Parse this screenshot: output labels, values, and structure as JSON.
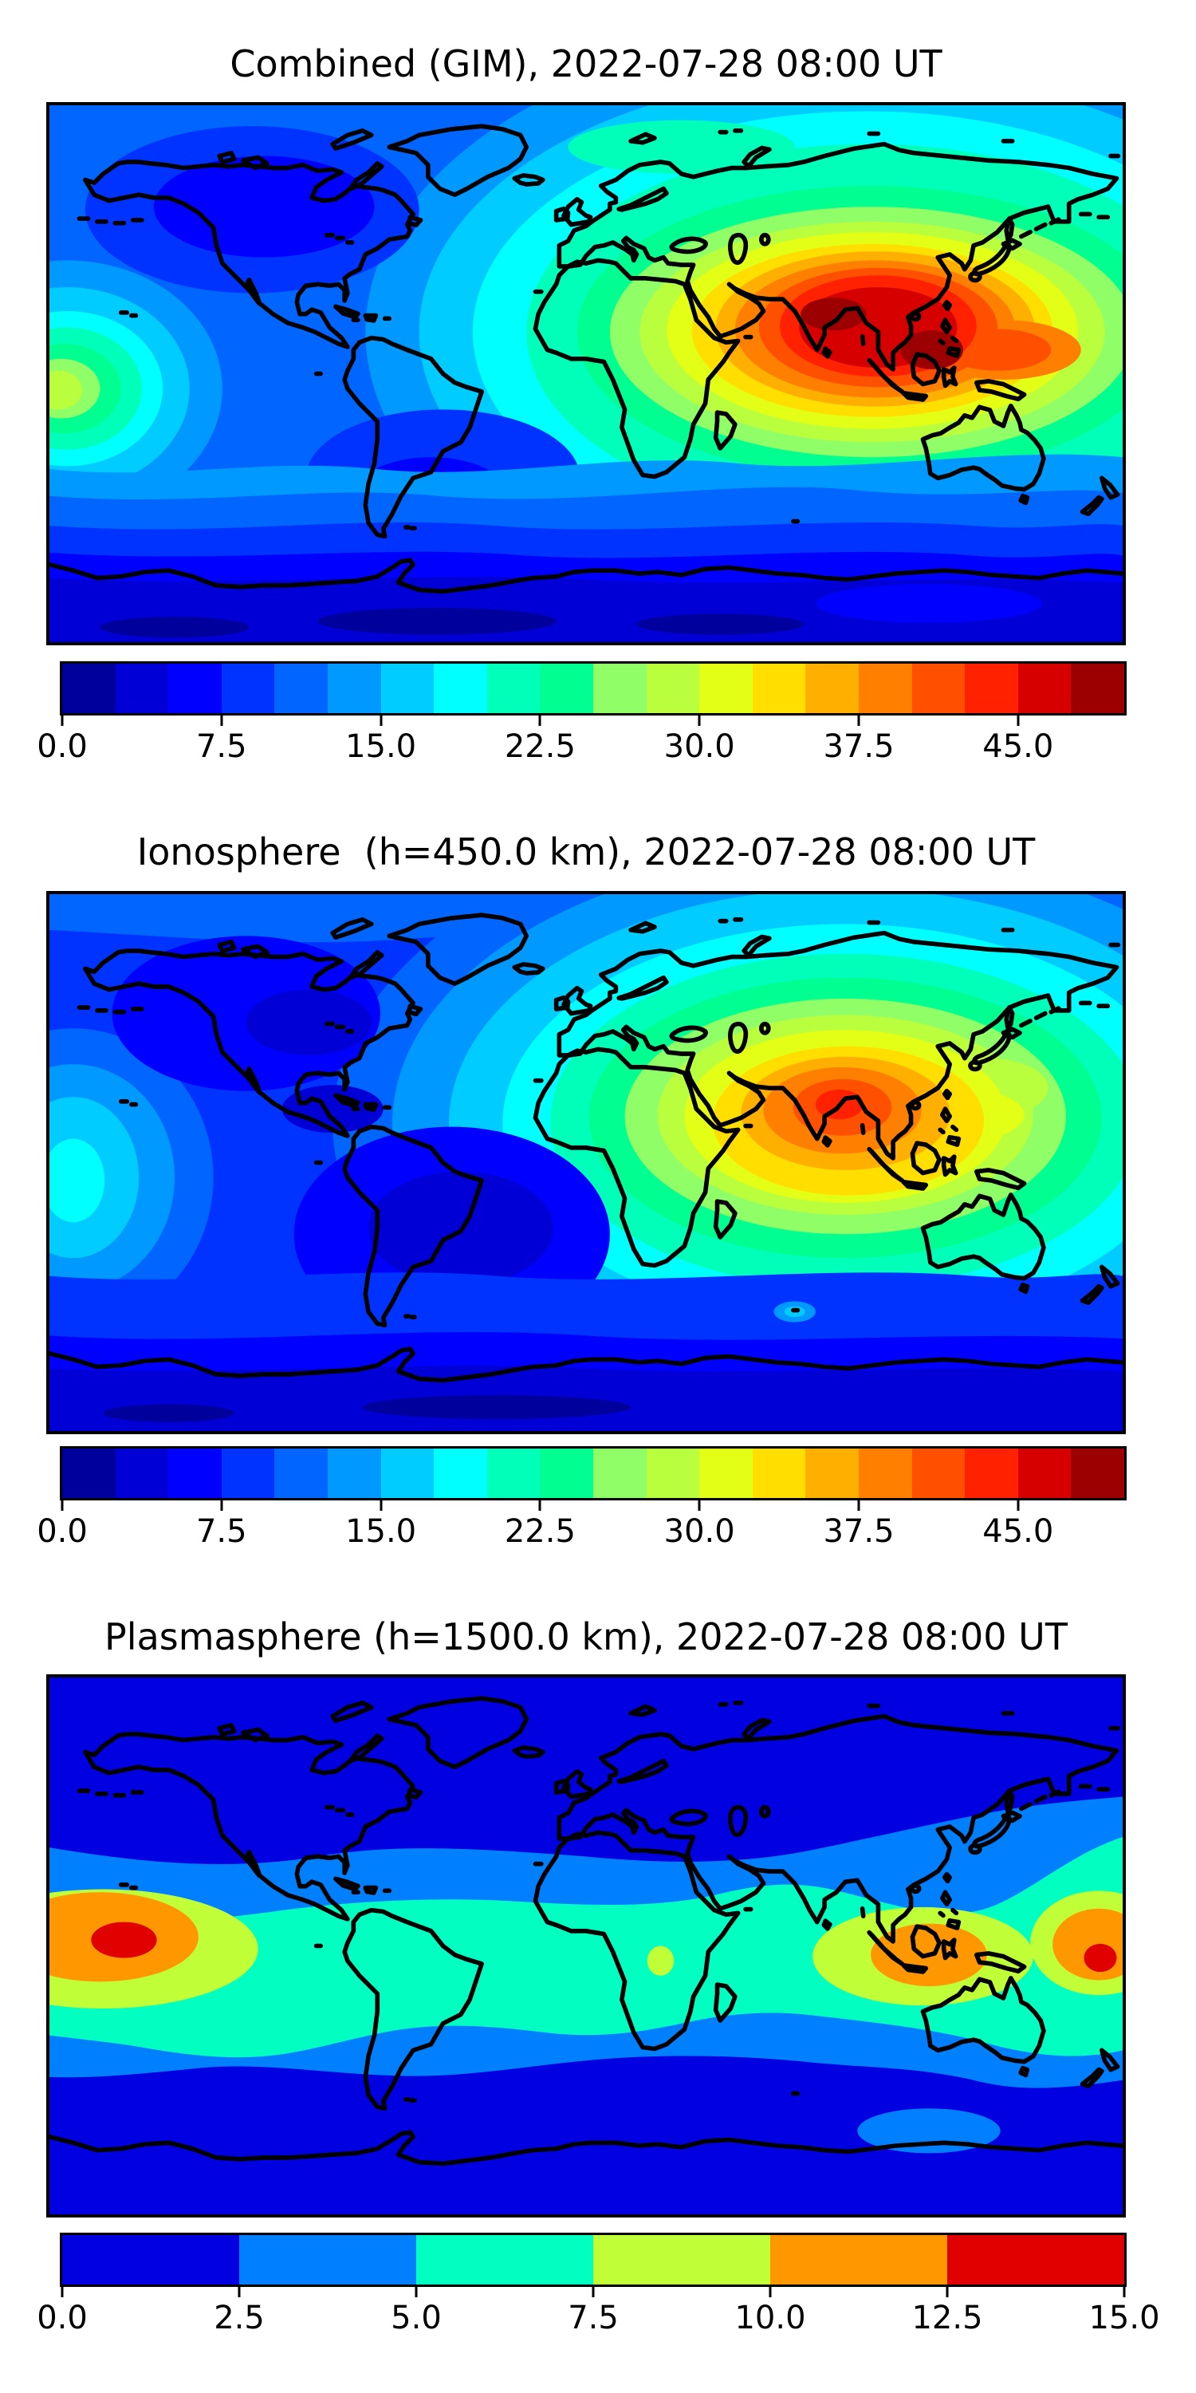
{
  "figure": {
    "background": "#ffffff",
    "text_color": "#000000",
    "frame_color": "#000000",
    "coastline_color": "#000000"
  },
  "panels": [
    {
      "id": "combined",
      "title": "Combined (GIM), 2022-07-28 08:00 UT",
      "colorbar": {
        "palette": "jet20",
        "range": [
          0.0,
          50.0
        ],
        "ticks": [
          "0.0",
          "7.5",
          "15.0",
          "22.5",
          "30.0",
          "37.5",
          "45.0"
        ]
      }
    },
    {
      "id": "ionosphere",
      "title": "Ionosphere  (h=450.0 km), 2022-07-28 08:00 UT",
      "colorbar": {
        "palette": "jet20",
        "range": [
          0.0,
          50.0
        ],
        "ticks": [
          "0.0",
          "7.5",
          "15.0",
          "22.5",
          "30.0",
          "37.5",
          "45.0"
        ]
      }
    },
    {
      "id": "plasmasphere",
      "title": "Plasmasphere (h=1500.0 km), 2022-07-28 08:00 UT",
      "colorbar": {
        "palette": "jet6",
        "range": [
          0.0,
          15.0
        ],
        "ticks": [
          "0.0",
          "2.5",
          "5.0",
          "7.5",
          "10.0",
          "12.5",
          "15.0"
        ]
      }
    }
  ],
  "palettes": {
    "jet20": [
      "#00009D",
      "#0000D6",
      "#0000FF",
      "#0033FF",
      "#0066FF",
      "#0099FF",
      "#00CCFF",
      "#00FFFF",
      "#00FFB9",
      "#00FF90",
      "#90FF67",
      "#B9FF3E",
      "#E2FF15",
      "#FFDE00",
      "#FFAF00",
      "#FF8000",
      "#FF5000",
      "#FF2100",
      "#D60000",
      "#9D0000"
    ],
    "jet6": [
      "#0000E0",
      "#0080FF",
      "#00FFC0",
      "#C0FF37",
      "#FF9700",
      "#E00000"
    ]
  },
  "chart_data": [
    {
      "type": "heatmap",
      "subtype": "filled-contour world map",
      "title": "Combined (GIM), 2022-07-28 08:00 UT",
      "projection": "equirectangular",
      "lon_range": [
        -180,
        180
      ],
      "lat_range": [
        -90,
        90
      ],
      "levels": [
        0,
        2.5,
        5,
        7.5,
        10,
        12.5,
        15,
        17.5,
        20,
        22.5,
        25,
        27.5,
        30,
        32.5,
        35,
        37.5,
        40,
        42.5,
        45,
        47.5,
        50
      ],
      "colorbar_ticks": [
        0.0,
        7.5,
        15.0,
        22.5,
        30.0,
        37.5,
        45.0
      ],
      "legend_position": "below",
      "features": [
        {
          "name": "primary maximum",
          "lon": 85,
          "lat": 20,
          "approx_value": 48
        },
        {
          "name": "secondary maximum core",
          "lon": 116,
          "lat": 8,
          "approx_value": 48
        },
        {
          "name": "dateline equatorial enhancement",
          "lon": -172,
          "lat": -5,
          "approx_value": 30
        },
        {
          "name": "North America minimum",
          "lon": -108,
          "lat": 56,
          "approx_value": 5
        },
        {
          "name": "Antarctic minimum band",
          "lon": -50,
          "lat": -80,
          "approx_value": 2
        }
      ]
    },
    {
      "type": "heatmap",
      "subtype": "filled-contour world map",
      "title": "Ionosphere  (h=450.0 km), 2022-07-28 08:00 UT",
      "projection": "equirectangular",
      "lon_range": [
        -180,
        180
      ],
      "lat_range": [
        -90,
        90
      ],
      "levels": [
        0,
        2.5,
        5,
        7.5,
        10,
        12.5,
        15,
        17.5,
        20,
        22.5,
        25,
        27.5,
        30,
        32.5,
        35,
        37.5,
        40,
        42.5,
        45,
        47.5,
        50
      ],
      "colorbar_ticks": [
        0.0,
        7.5,
        15.0,
        22.5,
        30.0,
        37.5,
        45.0
      ],
      "legend_position": "below",
      "features": [
        {
          "name": "primary maximum",
          "lon": 85,
          "lat": 20,
          "approx_value": 43
        },
        {
          "name": "dateline equatorial enhancement",
          "lon": -172,
          "lat": -5,
          "approx_value": 20
        },
        {
          "name": "Americas minimum",
          "lon": -60,
          "lat": -25,
          "approx_value": 3
        },
        {
          "name": "Antarctic minimum band",
          "lon": -30,
          "lat": -80,
          "approx_value": 2
        }
      ]
    },
    {
      "type": "heatmap",
      "subtype": "filled-contour world map",
      "title": "Plasmasphere (h=1500.0 km), 2022-07-28 08:00 UT",
      "projection": "equirectangular",
      "lon_range": [
        -180,
        180
      ],
      "lat_range": [
        -90,
        90
      ],
      "levels": [
        0,
        2.5,
        5.0,
        7.5,
        10.0,
        12.5,
        15.0
      ],
      "colorbar_ticks": [
        0.0,
        2.5,
        5.0,
        7.5,
        10.0,
        12.5,
        15.0
      ],
      "legend_position": "below",
      "features": [
        {
          "name": "central Pacific maximum",
          "lon": -155,
          "lat": 2,
          "approx_value": 14
        },
        {
          "name": "western Pacific maximum",
          "lon": 172,
          "lat": -4,
          "approx_value": 14
        },
        {
          "name": "Indonesia enhancement",
          "lon": 115,
          "lat": -3,
          "approx_value": 11
        },
        {
          "name": "central Africa spot",
          "lon": 25,
          "lat": -5,
          "approx_value": 8
        },
        {
          "name": "high-latitude minimum",
          "lon": 0,
          "lat": 70,
          "approx_value": 1.5
        }
      ]
    }
  ]
}
